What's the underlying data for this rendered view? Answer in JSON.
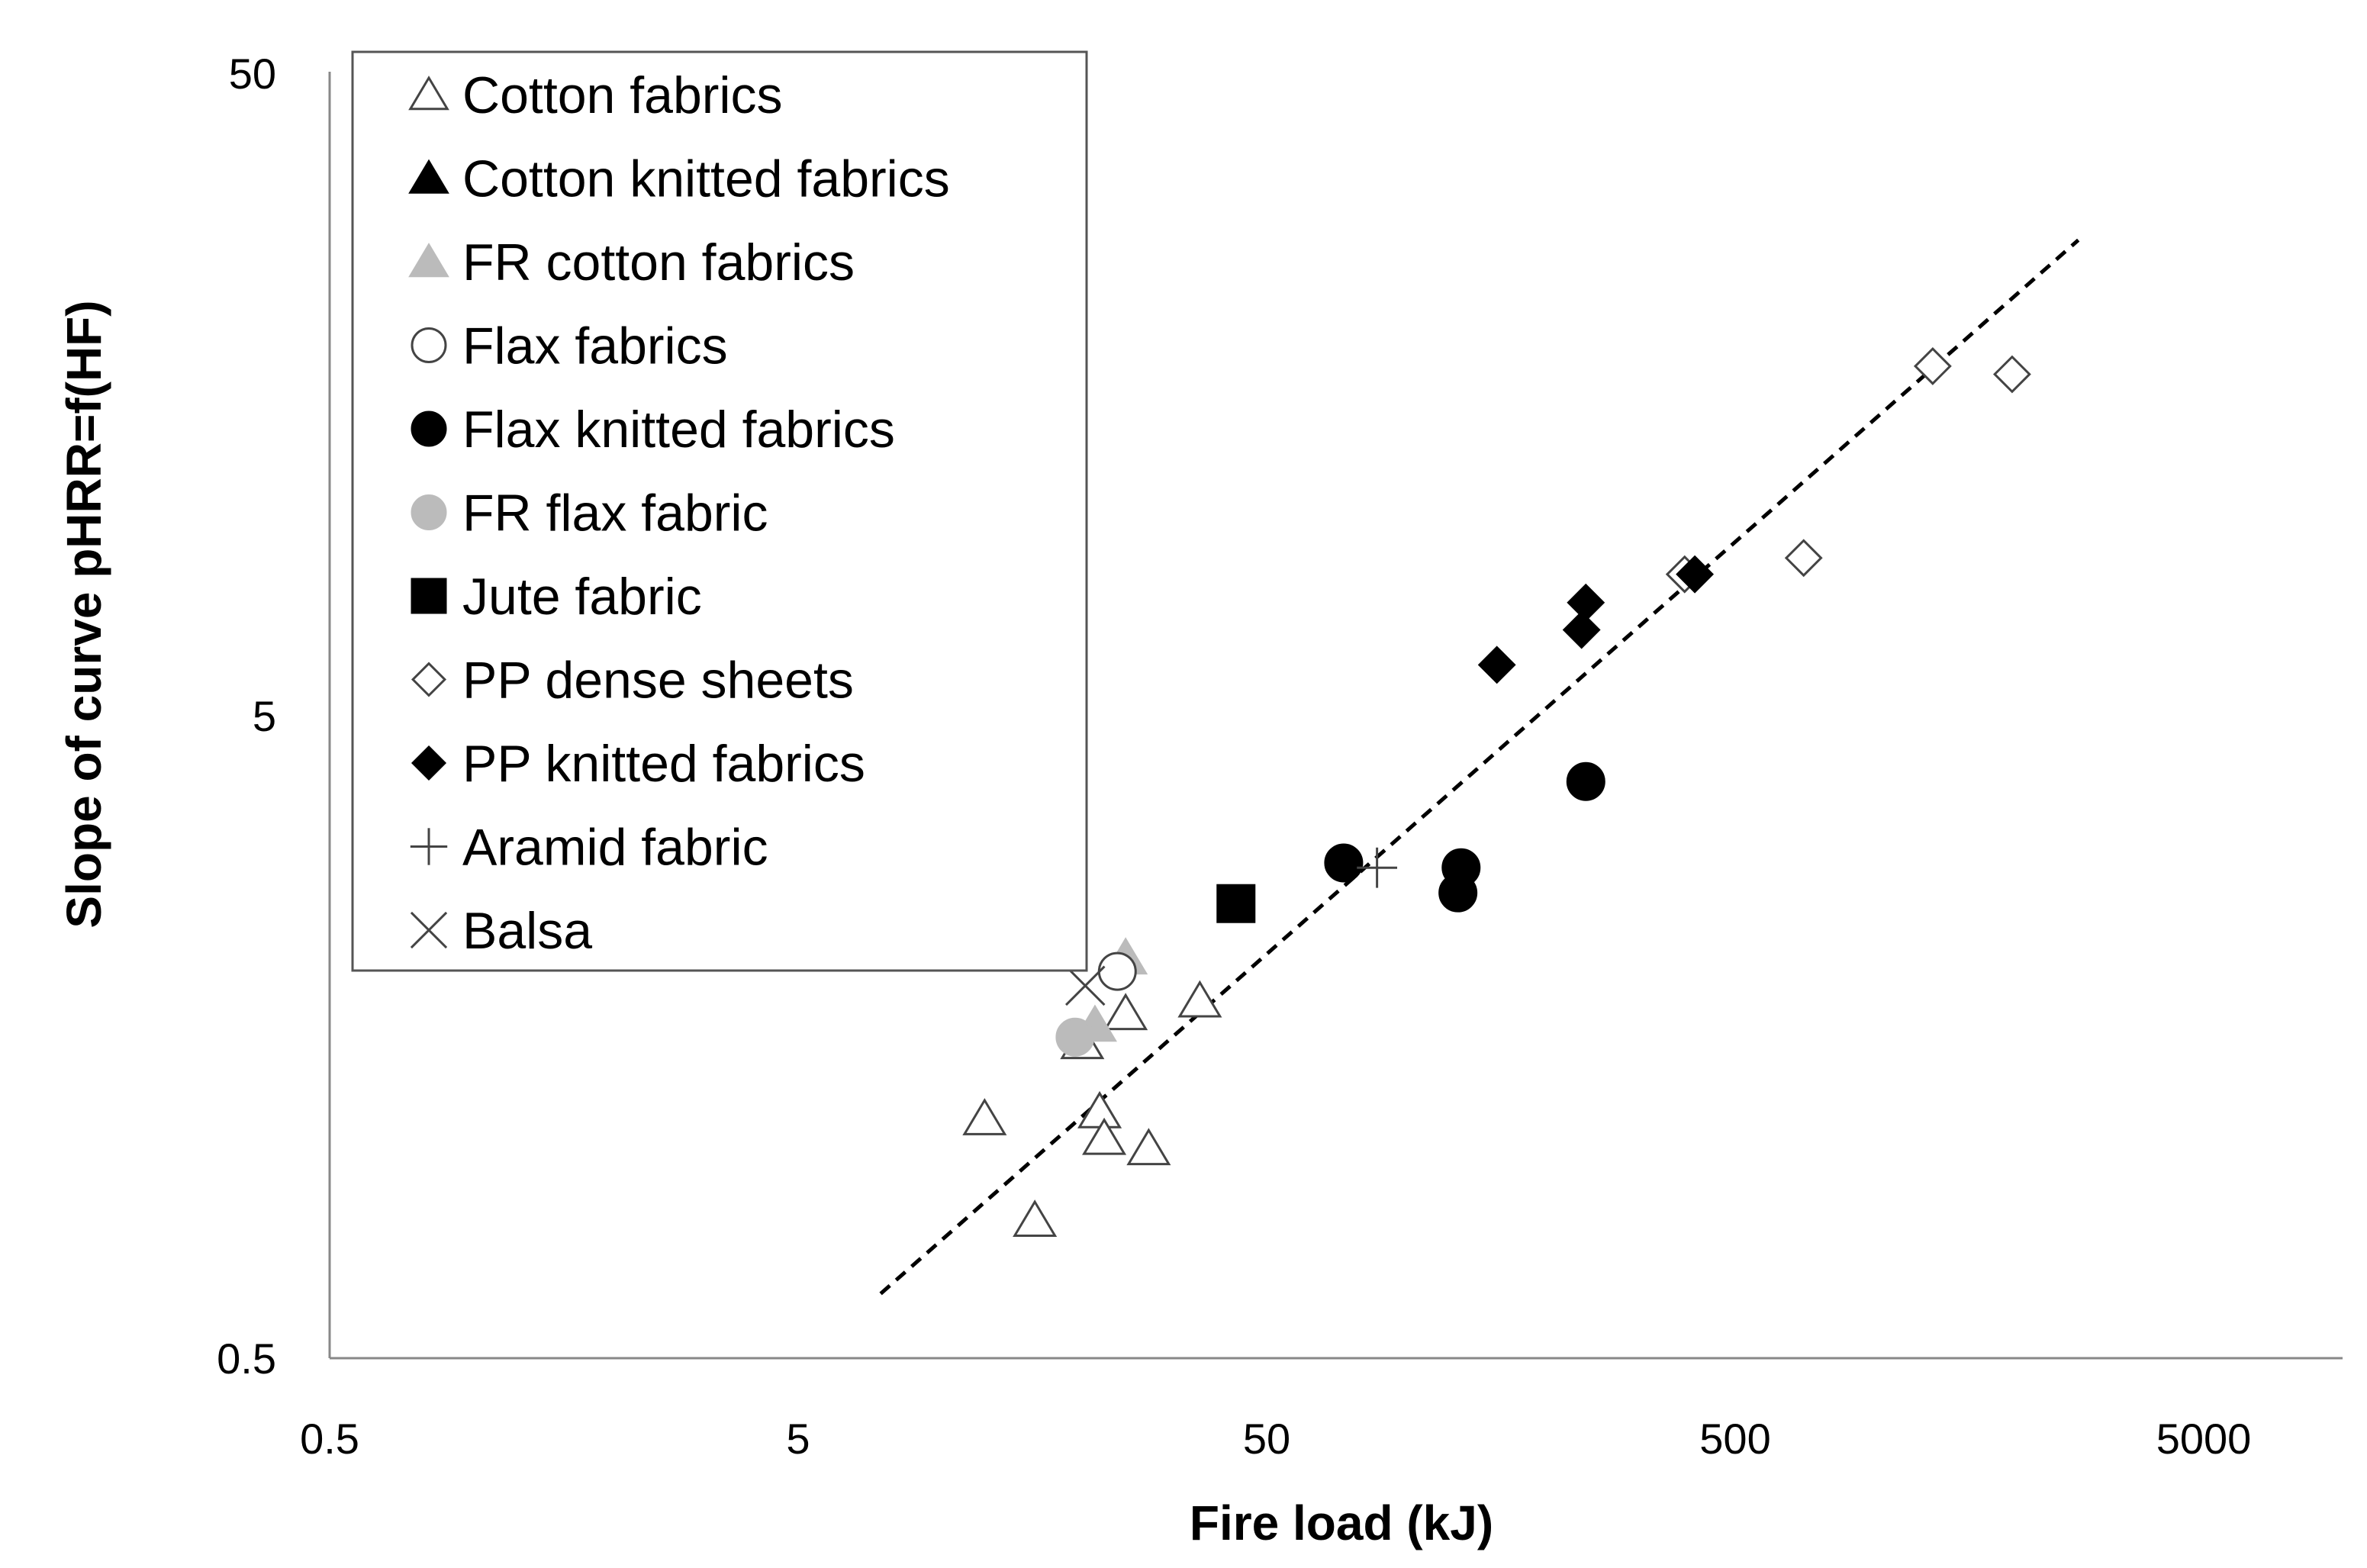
{
  "chart_data": {
    "type": "scatter",
    "x_scale": "log",
    "y_scale": "log",
    "xlabel": "Fire load (kJ)",
    "ylabel": "Slope of curve pHRR=f(HF)",
    "xlim": [
      0.5,
      10000
    ],
    "ylim": [
      0.5,
      50
    ],
    "x_ticks": [
      "0.5",
      "5",
      "50",
      "500",
      "5000"
    ],
    "y_ticks": [
      "0.5",
      "5",
      "50"
    ],
    "grid": false,
    "legend_position": "top-left",
    "series": [
      {
        "name": "Cotton fabrics",
        "marker": "triangle-open",
        "color": "#444444",
        "points": [
          [
            12.5,
            1.18
          ],
          [
            16,
            0.82
          ],
          [
            20.2,
            1.55
          ],
          [
            22,
            1.21
          ],
          [
            22.5,
            1.1
          ],
          [
            25,
            1.72
          ],
          [
            28,
            1.06
          ],
          [
            36,
            1.8
          ]
        ]
      },
      {
        "name": "Cotton knitted fabrics",
        "marker": "triangle-filled",
        "color": "#000000",
        "points": []
      },
      {
        "name": "FR cotton fabrics",
        "marker": "triangle-filled",
        "color": "#bbbbbb",
        "points": [
          [
            21.5,
            1.65
          ],
          [
            25,
            2.1
          ]
        ]
      },
      {
        "name": "Flax fabrics",
        "marker": "circle-open",
        "color": "#444444",
        "points": [
          [
            24,
            2.0
          ]
        ]
      },
      {
        "name": "Flax knitted fabrics",
        "marker": "circle-filled",
        "color": "#000000",
        "points": [
          [
            73,
            2.95
          ],
          [
            130,
            2.9
          ],
          [
            128,
            2.65
          ],
          [
            240,
            3.95
          ]
        ]
      },
      {
        "name": "FR flax fabric",
        "marker": "circle-filled",
        "color": "#bbbbbb",
        "points": [
          [
            19.5,
            1.58
          ]
        ]
      },
      {
        "name": "Jute fabric",
        "marker": "square-filled",
        "color": "#000000",
        "points": [
          [
            43,
            2.55
          ]
        ]
      },
      {
        "name": "PP dense sheets",
        "marker": "diamond-open",
        "color": "#444444",
        "points": [
          [
            390,
            8.3
          ],
          [
            700,
            8.8
          ],
          [
            1320,
            17.5
          ],
          [
            1950,
            17.0
          ]
        ]
      },
      {
        "name": "PP knitted fabrics",
        "marker": "diamond-filled",
        "color": "#000000",
        "points": [
          [
            155,
            6.0
          ],
          [
            235,
            6.8
          ],
          [
            240,
            7.5
          ],
          [
            410,
            8.3
          ]
        ]
      },
      {
        "name": "Aramid fabric",
        "marker": "plus",
        "color": "#444444",
        "points": [
          [
            86,
            2.9
          ]
        ]
      },
      {
        "name": "Balsa",
        "marker": "cross",
        "color": "#444444",
        "points": [
          [
            20.5,
            1.9
          ]
        ]
      }
    ],
    "trendline": {
      "style": "dashed",
      "color": "#000000",
      "points": [
        [
          7.5,
          0.63
        ],
        [
          2700,
          27.5
        ]
      ]
    }
  }
}
